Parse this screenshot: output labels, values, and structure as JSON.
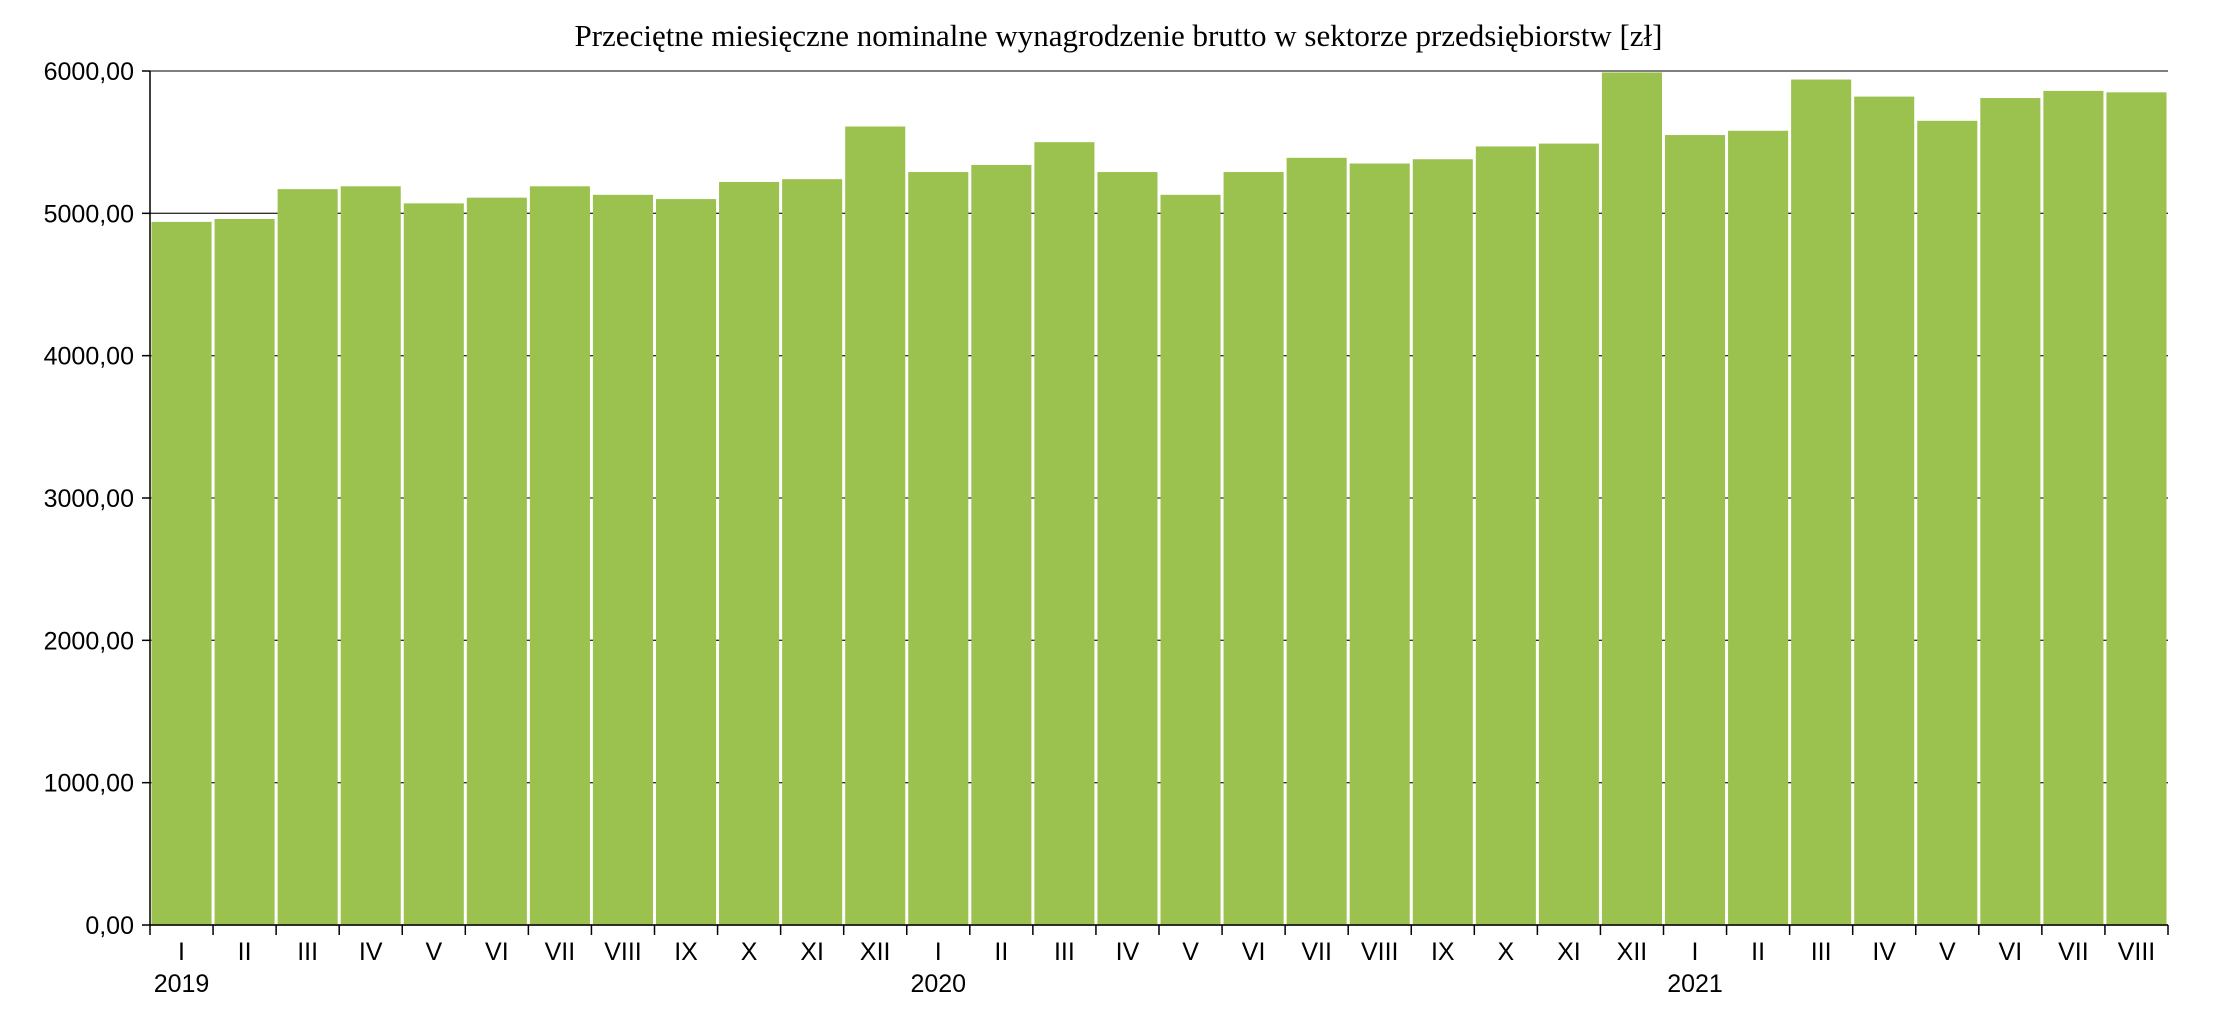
{
  "chart_data": {
    "type": "bar",
    "title": "Przeciętne miesięczne nominalne wynagrodzenie brutto w sektorze przedsiębiorstw [zł]",
    "xlabel": "",
    "ylabel": "",
    "ylim": [
      0,
      6000
    ],
    "yticks": [
      "0,00",
      "1000,00",
      "2000,00",
      "3000,00",
      "4000,00",
      "5000,00",
      "6000,00"
    ],
    "grid": "horizontal",
    "bar_color": "#9bc14e",
    "years": [
      {
        "label": "2019",
        "start_index": 0
      },
      {
        "label": "2020",
        "start_index": 12
      },
      {
        "label": "2021",
        "start_index": 24
      }
    ],
    "categories": [
      "I",
      "II",
      "III",
      "IV",
      "V",
      "VI",
      "VII",
      "VIII",
      "IX",
      "X",
      "XI",
      "XII",
      "I",
      "II",
      "III",
      "IV",
      "V",
      "VI",
      "VII",
      "VIII",
      "IX",
      "X",
      "XI",
      "XII",
      "I",
      "II",
      "III",
      "IV",
      "V",
      "VI",
      "VII",
      "VIII"
    ],
    "values": [
      4940,
      4960,
      5170,
      5190,
      5070,
      5110,
      5190,
      5130,
      5100,
      5220,
      5240,
      5610,
      5290,
      5340,
      5500,
      5290,
      5130,
      5290,
      5390,
      5350,
      5380,
      5470,
      5490,
      5990,
      5550,
      5580,
      5940,
      5820,
      5650,
      5810,
      5860,
      5850
    ]
  }
}
